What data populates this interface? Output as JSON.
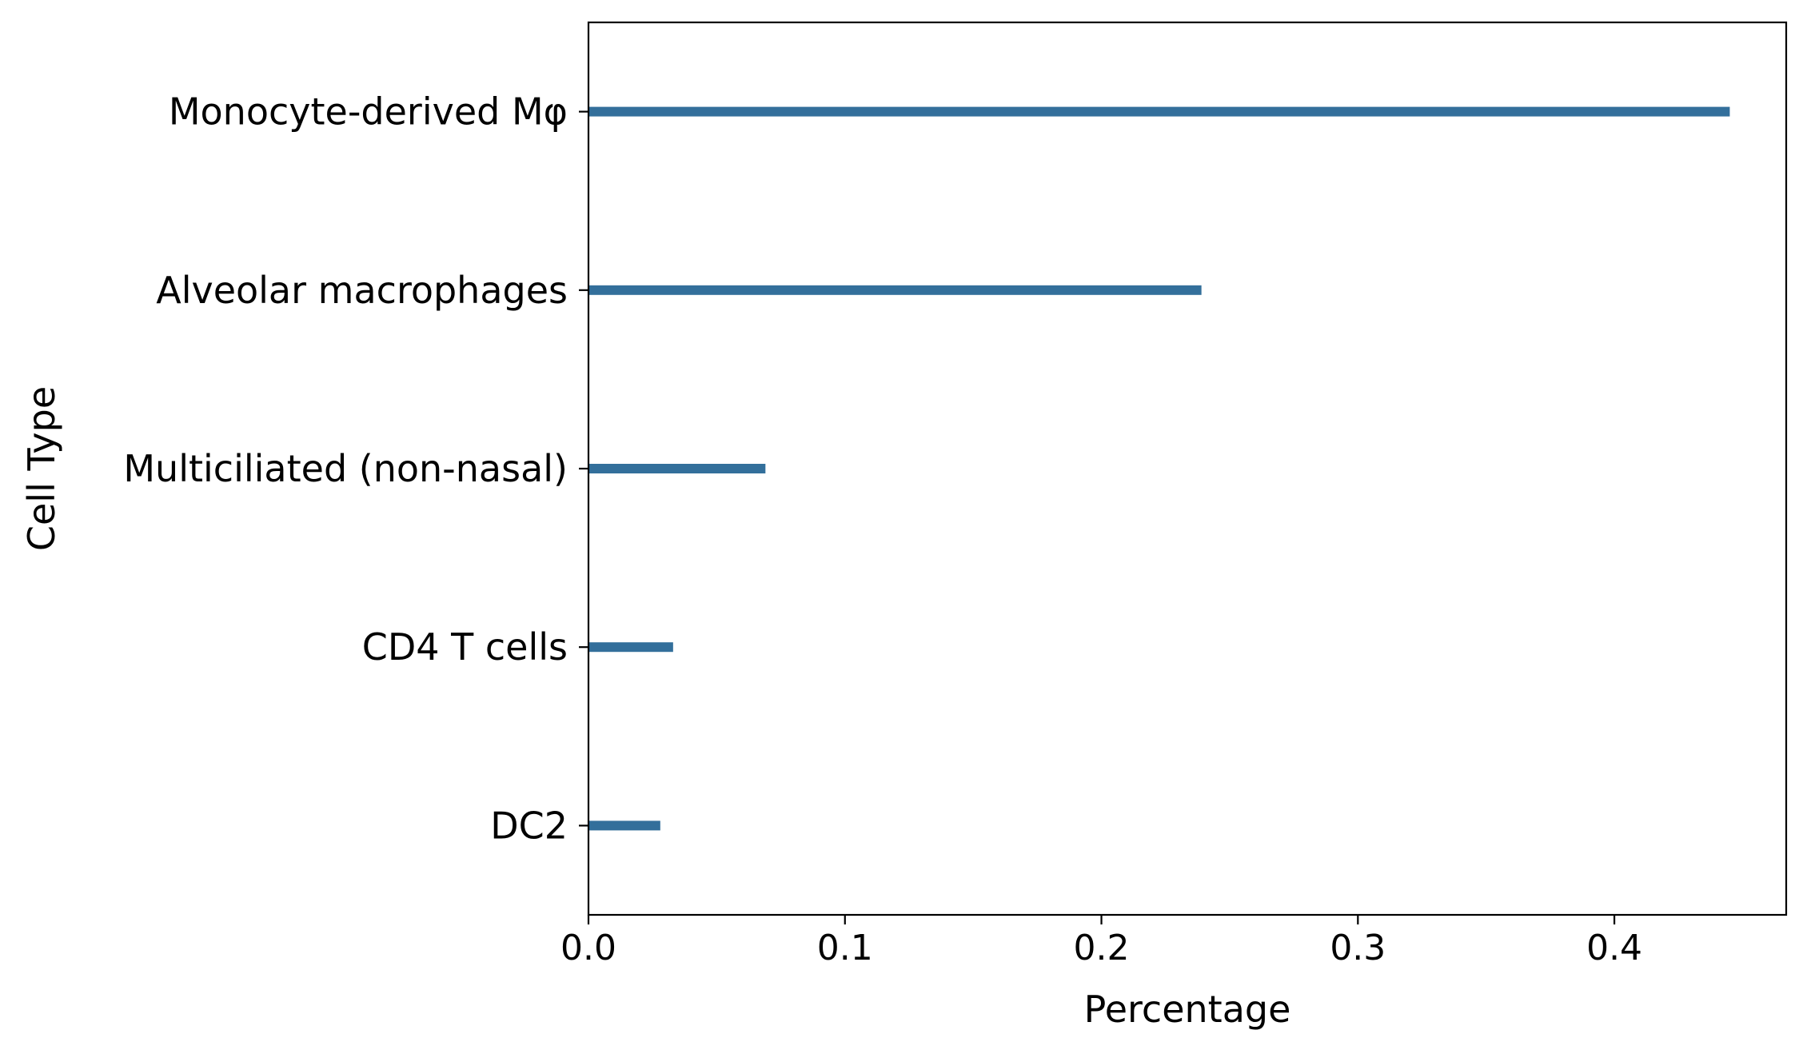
{
  "chart_data": {
    "type": "bar",
    "orientation": "horizontal",
    "title": "",
    "xlabel": "Percentage",
    "ylabel": "Cell Type",
    "categories": [
      "Monocyte-derived Mφ",
      "Alveolar macrophages",
      "Multiciliated (non-nasal)",
      "CD4 T cells",
      "DC2"
    ],
    "values": [
      0.445,
      0.239,
      0.069,
      0.033,
      0.028
    ],
    "xlim": [
      0.0,
      0.467
    ],
    "xticks": [
      0.0,
      0.1,
      0.2,
      0.3,
      0.4
    ],
    "xtick_labels": [
      "0.0",
      "0.1",
      "0.2",
      "0.3",
      "0.4"
    ],
    "grid": false,
    "legend": "none",
    "bar_color": "#336f9b"
  }
}
